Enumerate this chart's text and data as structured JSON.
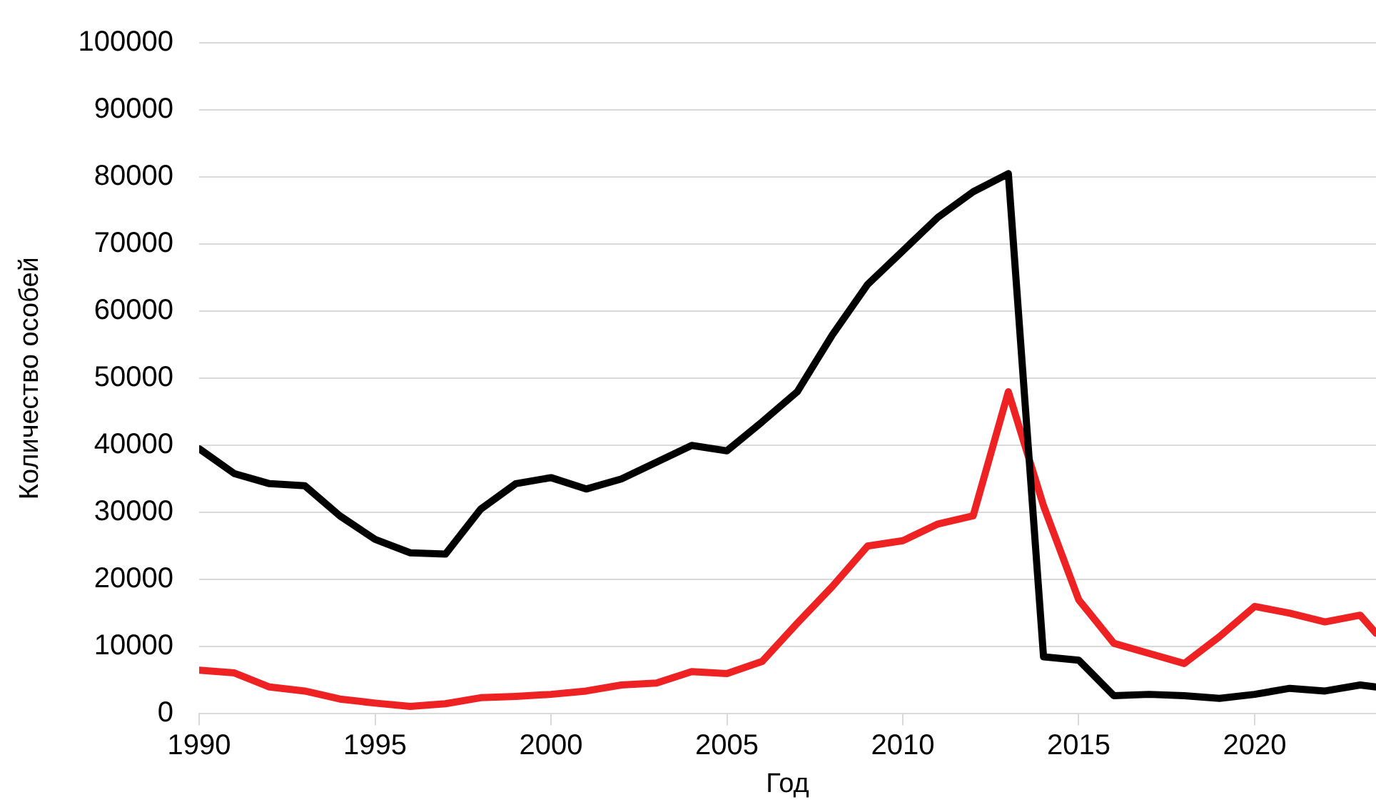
{
  "chart_data": {
    "type": "line",
    "xlabel": "Год",
    "ylabel": "Количество особей",
    "xlim": [
      1990,
      2023.45
    ],
    "xticks": [
      1990,
      1995,
      2000,
      2005,
      2010,
      2015,
      2020
    ],
    "ylim": [
      0,
      100000
    ],
    "yticks": [
      0,
      10000,
      20000,
      30000,
      40000,
      50000,
      60000,
      70000,
      80000,
      90000,
      100000
    ],
    "grid": "y",
    "legend": false,
    "marker": "none",
    "line_style": "solid",
    "x": [
      1990,
      1991,
      1992,
      1993,
      1994,
      1995,
      1996,
      1997,
      1998,
      1999,
      2000,
      2001,
      2002,
      2003,
      2004,
      2005,
      2006,
      2007,
      2008,
      2009,
      2010,
      2011,
      2012,
      2013,
      2014,
      2015,
      2016,
      2017,
      2018,
      2019,
      2020,
      2021,
      2022,
      2023,
      2023.45
    ],
    "series": [
      {
        "color": "#000000",
        "values": [
          39500,
          35800,
          34300,
          34000,
          29500,
          26000,
          24000,
          23800,
          30500,
          34300,
          35200,
          33500,
          35000,
          37500,
          40000,
          39200,
          43500,
          48000,
          56500,
          64000,
          69000,
          74000,
          77800,
          80500,
          8500,
          8000,
          2700,
          2900,
          2700,
          2300,
          2900,
          3800,
          3400,
          4300,
          4000
        ]
      },
      {
        "color": "#ee2222",
        "values": [
          6500,
          6100,
          4000,
          3400,
          2200,
          1600,
          1100,
          1500,
          2400,
          2600,
          2900,
          3400,
          4300,
          4600,
          6300,
          6000,
          7800,
          13500,
          19000,
          25000,
          25800,
          28300,
          29500,
          48000,
          31000,
          17000,
          10500,
          9000,
          7500,
          11500,
          16000,
          15000,
          13700,
          14700,
          12000
        ]
      }
    ]
  }
}
